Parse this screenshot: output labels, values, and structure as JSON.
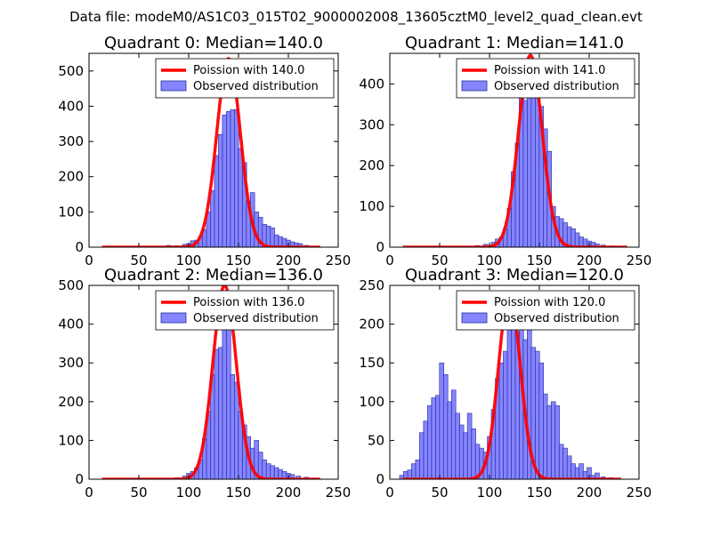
{
  "figure_title": "Data file: modeM0/AS1C03_015T02_9000002008_13605cztM0_level2_quad_clean.evt",
  "colors": {
    "observed": "#7070ff",
    "observed_edge": "#2a2a9a",
    "poisson": "#ff0000"
  },
  "chart_data": [
    {
      "type": "bar+line",
      "title": "Quadrant 0: Median=140.0",
      "xlim": [
        0,
        250
      ],
      "ylim": [
        0,
        550
      ],
      "xticks": [
        "0",
        "50",
        "100",
        "150",
        "200",
        "250"
      ],
      "yticks": [
        "0",
        "100",
        "200",
        "300",
        "400",
        "500"
      ],
      "xtick_values": [
        0,
        50,
        100,
        150,
        200,
        250
      ],
      "ytick_values": [
        0,
        100,
        200,
        300,
        400,
        500
      ],
      "legend": [
        "Poission with 140.0",
        "Observed distribution"
      ],
      "bin_width": 4.4,
      "bins": [
        {
          "x": 80,
          "y": 5
        },
        {
          "x": 88,
          "y": 4
        },
        {
          "x": 96,
          "y": 8
        },
        {
          "x": 100,
          "y": 10
        },
        {
          "x": 104,
          "y": 18
        },
        {
          "x": 108,
          "y": 20
        },
        {
          "x": 112,
          "y": 30
        },
        {
          "x": 116,
          "y": 50
        },
        {
          "x": 120,
          "y": 100
        },
        {
          "x": 124,
          "y": 160
        },
        {
          "x": 128,
          "y": 260
        },
        {
          "x": 132,
          "y": 320
        },
        {
          "x": 136,
          "y": 375
        },
        {
          "x": 140,
          "y": 385
        },
        {
          "x": 144,
          "y": 390
        },
        {
          "x": 148,
          "y": 390
        },
        {
          "x": 152,
          "y": 280
        },
        {
          "x": 156,
          "y": 240
        },
        {
          "x": 160,
          "y": 130
        },
        {
          "x": 164,
          "y": 155
        },
        {
          "x": 168,
          "y": 100
        },
        {
          "x": 172,
          "y": 85
        },
        {
          "x": 176,
          "y": 65
        },
        {
          "x": 180,
          "y": 60
        },
        {
          "x": 184,
          "y": 55
        },
        {
          "x": 188,
          "y": 35
        },
        {
          "x": 192,
          "y": 30
        },
        {
          "x": 196,
          "y": 25
        },
        {
          "x": 200,
          "y": 20
        },
        {
          "x": 204,
          "y": 15
        },
        {
          "x": 208,
          "y": 12
        },
        {
          "x": 212,
          "y": 10
        },
        {
          "x": 218,
          "y": 5
        },
        {
          "x": 226,
          "y": 3
        }
      ],
      "poisson": {
        "mean": 140,
        "peak": 535,
        "x_range": [
          13,
          232
        ]
      }
    },
    {
      "type": "bar+line",
      "title": "Quadrant 1: Median=141.0",
      "xlim": [
        0,
        250
      ],
      "ylim": [
        0,
        475
      ],
      "xticks": [
        "0",
        "50",
        "100",
        "150",
        "200",
        "250"
      ],
      "yticks": [
        "0",
        "100",
        "200",
        "300",
        "400"
      ],
      "xtick_values": [
        0,
        50,
        100,
        150,
        200,
        250
      ],
      "ytick_values": [
        0,
        100,
        200,
        300,
        400
      ],
      "legend": [
        "Poission with 141.0",
        "Observed distribution"
      ],
      "bin_width": 4.4,
      "bins": [
        {
          "x": 88,
          "y": 4
        },
        {
          "x": 96,
          "y": 7
        },
        {
          "x": 104,
          "y": 12
        },
        {
          "x": 108,
          "y": 20
        },
        {
          "x": 112,
          "y": 25
        },
        {
          "x": 116,
          "y": 45
        },
        {
          "x": 120,
          "y": 95
        },
        {
          "x": 124,
          "y": 185
        },
        {
          "x": 128,
          "y": 255
        },
        {
          "x": 132,
          "y": 375
        },
        {
          "x": 136,
          "y": 360
        },
        {
          "x": 140,
          "y": 455
        },
        {
          "x": 144,
          "y": 400
        },
        {
          "x": 148,
          "y": 390
        },
        {
          "x": 152,
          "y": 345
        },
        {
          "x": 156,
          "y": 290
        },
        {
          "x": 160,
          "y": 235
        },
        {
          "x": 164,
          "y": 100
        },
        {
          "x": 168,
          "y": 75
        },
        {
          "x": 172,
          "y": 70
        },
        {
          "x": 176,
          "y": 60
        },
        {
          "x": 180,
          "y": 50
        },
        {
          "x": 184,
          "y": 45
        },
        {
          "x": 188,
          "y": 35
        },
        {
          "x": 192,
          "y": 25
        },
        {
          "x": 196,
          "y": 20
        },
        {
          "x": 200,
          "y": 15
        },
        {
          "x": 204,
          "y": 12
        },
        {
          "x": 208,
          "y": 8
        },
        {
          "x": 214,
          "y": 5
        },
        {
          "x": 222,
          "y": 3
        }
      ],
      "poisson": {
        "mean": 141,
        "peak": 470,
        "x_range": [
          13,
          238
        ]
      }
    },
    {
      "type": "bar+line",
      "title": "Quadrant 2: Median=136.0",
      "xlim": [
        0,
        250
      ],
      "ylim": [
        0,
        500
      ],
      "xticks": [
        "0",
        "50",
        "100",
        "150",
        "200",
        "250"
      ],
      "yticks": [
        "0",
        "100",
        "200",
        "300",
        "400",
        "500"
      ],
      "xtick_values": [
        0,
        50,
        100,
        150,
        200,
        250
      ],
      "ytick_values": [
        0,
        100,
        200,
        300,
        400,
        500
      ],
      "legend": [
        "Poission with 136.0",
        "Observed distribution"
      ],
      "bin_width": 4.4,
      "bins": [
        {
          "x": 88,
          "y": 4
        },
        {
          "x": 96,
          "y": 8
        },
        {
          "x": 100,
          "y": 15
        },
        {
          "x": 104,
          "y": 20
        },
        {
          "x": 108,
          "y": 30
        },
        {
          "x": 112,
          "y": 50
        },
        {
          "x": 116,
          "y": 105
        },
        {
          "x": 120,
          "y": 175
        },
        {
          "x": 124,
          "y": 270
        },
        {
          "x": 128,
          "y": 335
        },
        {
          "x": 132,
          "y": 340
        },
        {
          "x": 136,
          "y": 390
        },
        {
          "x": 140,
          "y": 410
        },
        {
          "x": 144,
          "y": 270
        },
        {
          "x": 148,
          "y": 250
        },
        {
          "x": 152,
          "y": 175
        },
        {
          "x": 156,
          "y": 140
        },
        {
          "x": 160,
          "y": 110
        },
        {
          "x": 164,
          "y": 80
        },
        {
          "x": 168,
          "y": 100
        },
        {
          "x": 172,
          "y": 70
        },
        {
          "x": 176,
          "y": 50
        },
        {
          "x": 180,
          "y": 40
        },
        {
          "x": 184,
          "y": 35
        },
        {
          "x": 188,
          "y": 30
        },
        {
          "x": 192,
          "y": 25
        },
        {
          "x": 196,
          "y": 20
        },
        {
          "x": 200,
          "y": 15
        },
        {
          "x": 204,
          "y": 12
        },
        {
          "x": 210,
          "y": 8
        },
        {
          "x": 218,
          "y": 5
        },
        {
          "x": 226,
          "y": 3
        }
      ],
      "poisson": {
        "mean": 136,
        "peak": 500,
        "x_range": [
          13,
          232
        ]
      }
    },
    {
      "type": "bar+line",
      "title": "Quadrant 3: Median=120.0",
      "xlim": [
        0,
        250
      ],
      "ylim": [
        0,
        250
      ],
      "xticks": [
        "0",
        "50",
        "100",
        "150",
        "200",
        "250"
      ],
      "yticks": [
        "0",
        "50",
        "100",
        "150",
        "200",
        "250"
      ],
      "xtick_values": [
        0,
        50,
        100,
        150,
        200,
        250
      ],
      "ytick_values": [
        0,
        50,
        100,
        150,
        200,
        250
      ],
      "legend": [
        "Poission with 120.0",
        "Observed distribution"
      ],
      "bin_width": 4.4,
      "bins": [
        {
          "x": 12,
          "y": 5
        },
        {
          "x": 16,
          "y": 10
        },
        {
          "x": 20,
          "y": 12
        },
        {
          "x": 24,
          "y": 20
        },
        {
          "x": 28,
          "y": 25
        },
        {
          "x": 32,
          "y": 60
        },
        {
          "x": 36,
          "y": 75
        },
        {
          "x": 40,
          "y": 95
        },
        {
          "x": 44,
          "y": 105
        },
        {
          "x": 48,
          "y": 108
        },
        {
          "x": 52,
          "y": 150
        },
        {
          "x": 56,
          "y": 135
        },
        {
          "x": 60,
          "y": 100
        },
        {
          "x": 64,
          "y": 115
        },
        {
          "x": 68,
          "y": 85
        },
        {
          "x": 72,
          "y": 70
        },
        {
          "x": 76,
          "y": 60
        },
        {
          "x": 80,
          "y": 85
        },
        {
          "x": 84,
          "y": 65
        },
        {
          "x": 88,
          "y": 45
        },
        {
          "x": 92,
          "y": 40
        },
        {
          "x": 96,
          "y": 35
        },
        {
          "x": 100,
          "y": 55
        },
        {
          "x": 104,
          "y": 90
        },
        {
          "x": 108,
          "y": 130
        },
        {
          "x": 112,
          "y": 150
        },
        {
          "x": 116,
          "y": 165
        },
        {
          "x": 120,
          "y": 210
        },
        {
          "x": 124,
          "y": 200
        },
        {
          "x": 128,
          "y": 190
        },
        {
          "x": 132,
          "y": 215
        },
        {
          "x": 136,
          "y": 180
        },
        {
          "x": 140,
          "y": 225
        },
        {
          "x": 144,
          "y": 170
        },
        {
          "x": 148,
          "y": 165
        },
        {
          "x": 152,
          "y": 150
        },
        {
          "x": 156,
          "y": 110
        },
        {
          "x": 160,
          "y": 95
        },
        {
          "x": 164,
          "y": 100
        },
        {
          "x": 168,
          "y": 95
        },
        {
          "x": 172,
          "y": 45
        },
        {
          "x": 176,
          "y": 40
        },
        {
          "x": 180,
          "y": 30
        },
        {
          "x": 184,
          "y": 20
        },
        {
          "x": 188,
          "y": 15
        },
        {
          "x": 192,
          "y": 20
        },
        {
          "x": 196,
          "y": 10
        },
        {
          "x": 200,
          "y": 15
        },
        {
          "x": 204,
          "y": 5
        },
        {
          "x": 208,
          "y": 8
        },
        {
          "x": 214,
          "y": 3
        },
        {
          "x": 222,
          "y": 2
        }
      ],
      "poisson": {
        "mean": 120,
        "peak": 240,
        "x_range": [
          13,
          232
        ]
      }
    }
  ]
}
